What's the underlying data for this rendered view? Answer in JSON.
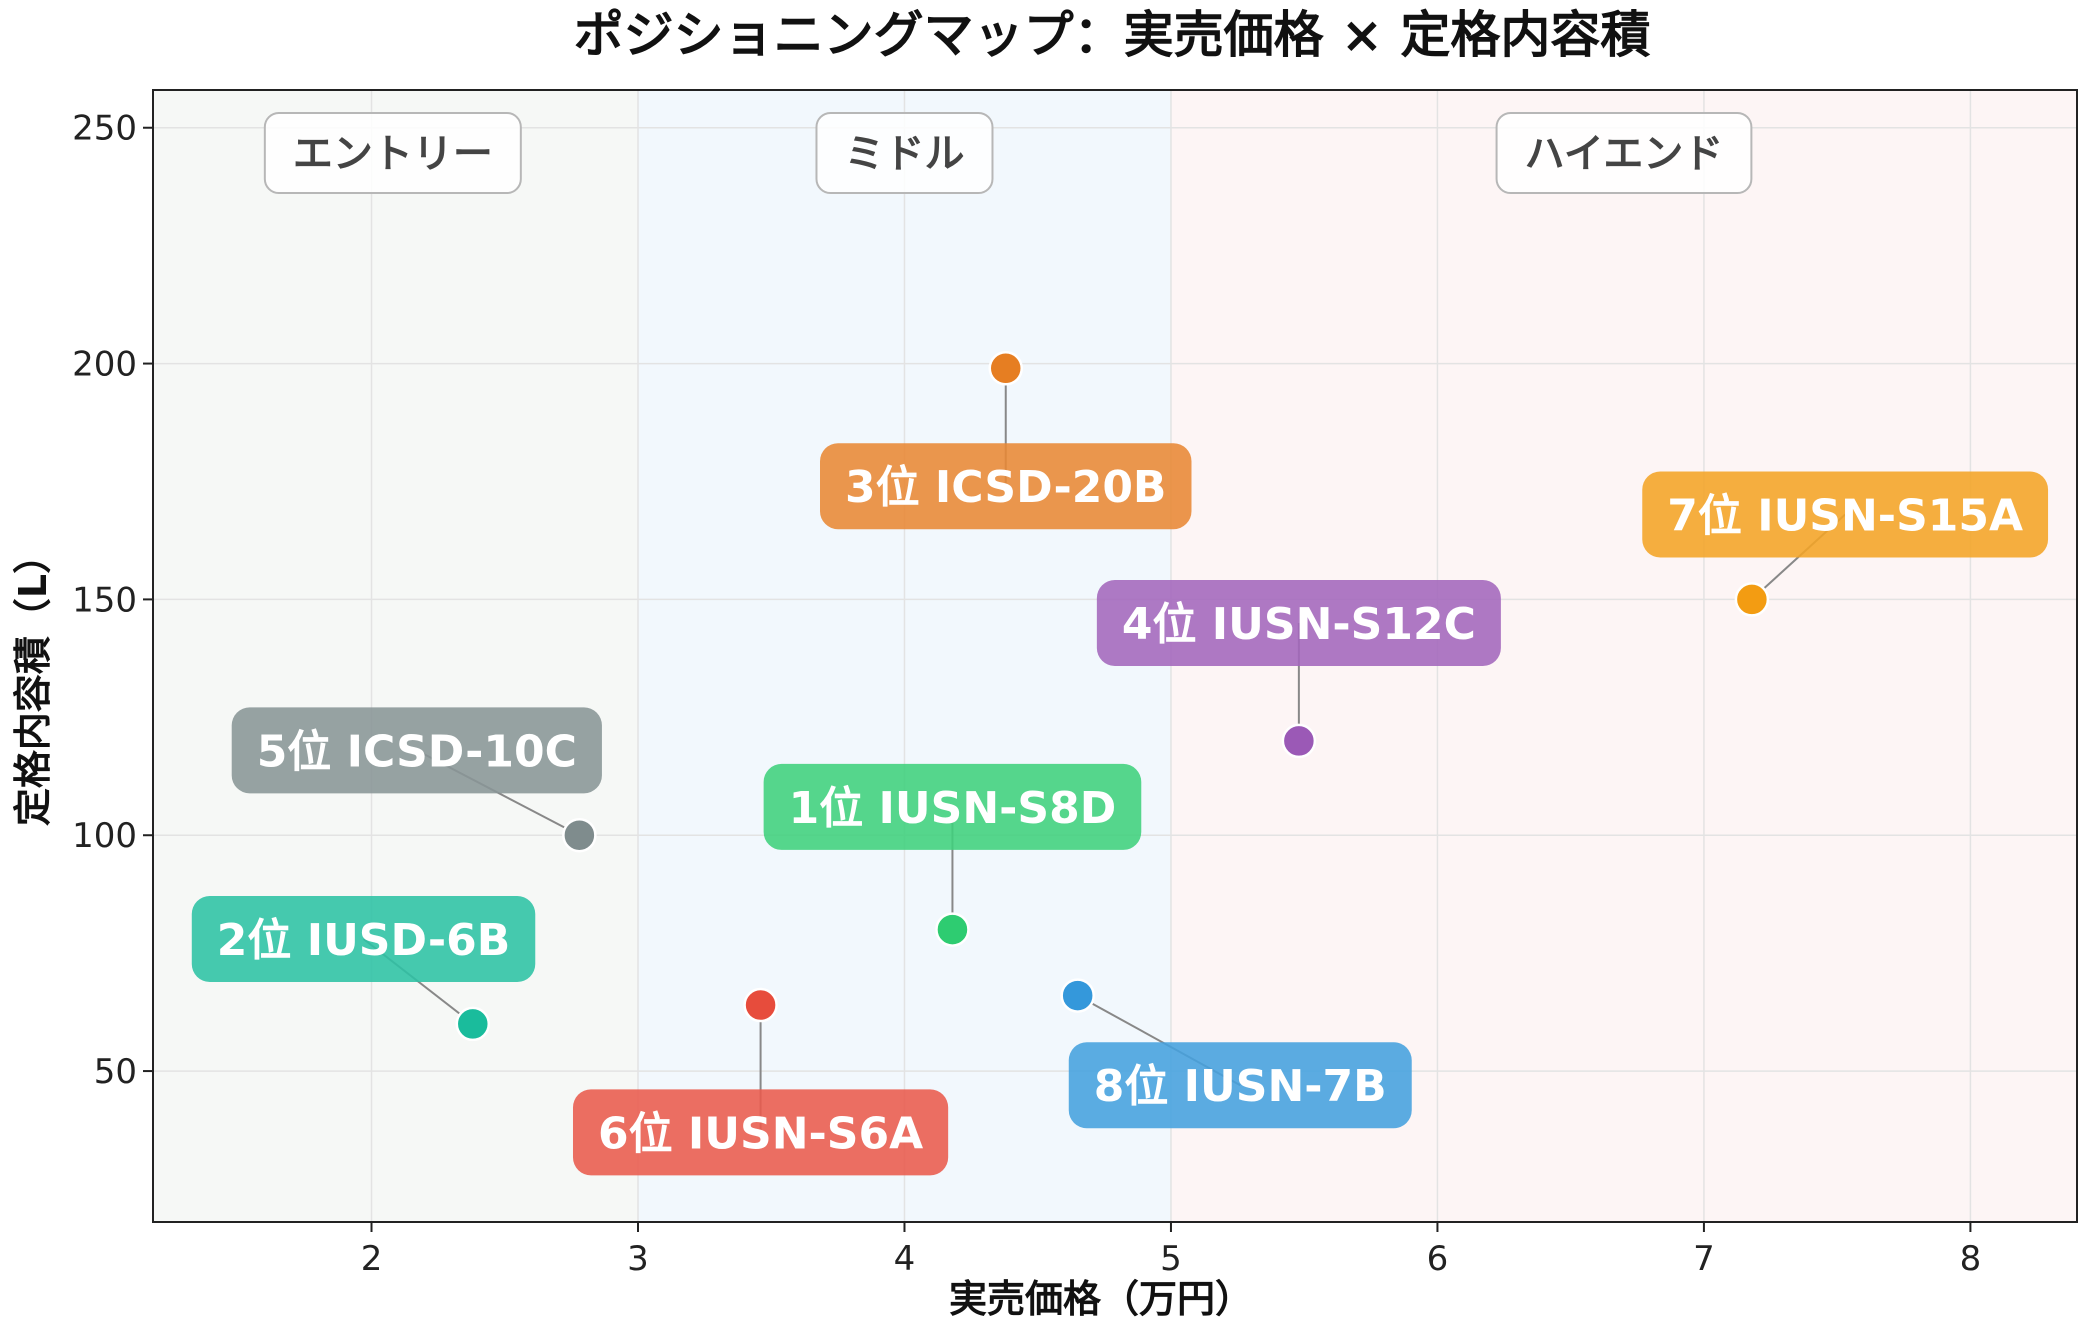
{
  "chart_data": {
    "type": "scatter",
    "title": "ポジショニングマップ：実売価格 × 定格内容積",
    "xlabel": "実売価格（万円）",
    "ylabel": "定格内容積（L）",
    "xlim": [
      1.18,
      8.4
    ],
    "ylim": [
      18,
      258
    ],
    "xticks": [
      2,
      3,
      4,
      5,
      6,
      7,
      8
    ],
    "yticks": [
      50,
      100,
      150,
      200,
      250
    ],
    "grid": true,
    "bands": [
      {
        "label": "エントリー",
        "x_from": 1.18,
        "x_to": 3,
        "color": "#f6f8f6"
      },
      {
        "label": "ミドル",
        "x_from": 3,
        "x_to": 5,
        "color": "#f2f8fd"
      },
      {
        "label": "ハイエンド",
        "x_from": 5,
        "x_to": 8.4,
        "color": "#fdf5f5"
      }
    ],
    "points": [
      {
        "label": "1位 IUSN-S8D",
        "x": 4.18,
        "y": 80,
        "color": "#2ecc71",
        "label_side": "above",
        "label_x": 4.18,
        "label_y": 106
      },
      {
        "label": "2位 IUSD-6B",
        "x": 2.38,
        "y": 60,
        "color": "#1abc9c",
        "label_side": "above",
        "label_x": 1.97,
        "label_y": 78
      },
      {
        "label": "3位 ICSD-20B",
        "x": 4.38,
        "y": 199,
        "color": "#e67e22",
        "label_side": "below",
        "label_x": 4.38,
        "label_y": 174
      },
      {
        "label": "4位 IUSN-S12C",
        "x": 5.48,
        "y": 120,
        "color": "#9b59b6",
        "label_side": "above",
        "label_x": 5.48,
        "label_y": 145
      },
      {
        "label": "5位 ICSD-10C",
        "x": 2.78,
        "y": 100,
        "color": "#7f8c8d",
        "label_side": "above",
        "label_x": 2.17,
        "label_y": 118
      },
      {
        "label": "6位 IUSN-S6A",
        "x": 3.46,
        "y": 64,
        "color": "#e74c3c",
        "label_side": "below",
        "label_x": 3.46,
        "label_y": 37
      },
      {
        "label": "7位 IUSN-S15A",
        "x": 7.18,
        "y": 150,
        "color": "#f39c12",
        "label_side": "above",
        "label_x": 7.53,
        "label_y": 168
      },
      {
        "label": "8位 IUSN-7B",
        "x": 4.65,
        "y": 66,
        "color": "#3498db",
        "label_side": "below",
        "label_x": 5.26,
        "label_y": 47
      }
    ]
  }
}
